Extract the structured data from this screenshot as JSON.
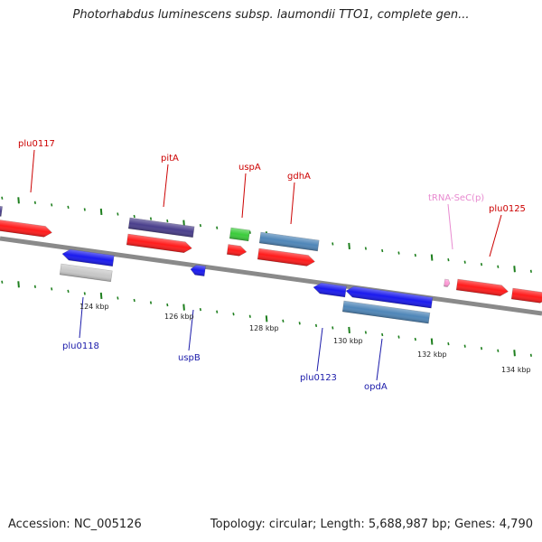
{
  "title": "Photorhabdus luminescens subsp. laumondii TTO1, complete gen...",
  "footer": {
    "accession": "Accession: NC_005126",
    "summary": "Topology: circular; Length: 5,688,987 bp; Genes: 4,790"
  },
  "colors": {
    "cds": "#ff1c1c",
    "cds_blue": "#1a1aee",
    "navy": "#4a3f8c",
    "steel": "#4f86b8",
    "green": "#3bcc3b",
    "grey": "#c8c8c8",
    "trna": "#ff9ad6",
    "tick_green": "#1e7f1e",
    "label_red": "#cc0000",
    "label_blue": "#1a1aaa",
    "label_pink": "#e88ad0",
    "backbone": "#8a8a8a"
  },
  "genome": {
    "scale_labels": [
      "124 kbp",
      "126 kbp",
      "128 kbp",
      "130 kbp",
      "132 kbp",
      "134 kbp"
    ],
    "genes": [
      {
        "name": "plu0117",
        "strand": "+",
        "color": "cds"
      },
      {
        "name": "pitA",
        "strand": "+",
        "color": "cds"
      },
      {
        "name": "uspA",
        "strand": "+",
        "color": "cds"
      },
      {
        "name": "gdhA",
        "strand": "+",
        "color": "cds"
      },
      {
        "name": "tRNA-SeC(p)",
        "strand": "+",
        "color": "trna"
      },
      {
        "name": "plu0125",
        "strand": "+",
        "color": "cds"
      },
      {
        "name": "plu0118",
        "strand": "-",
        "color": "cds_blue"
      },
      {
        "name": "uspB",
        "strand": "-",
        "color": "cds_blue"
      },
      {
        "name": "plu0123",
        "strand": "-",
        "color": "cds_blue"
      },
      {
        "name": "opdA",
        "strand": "-",
        "color": "cds_blue"
      }
    ]
  }
}
